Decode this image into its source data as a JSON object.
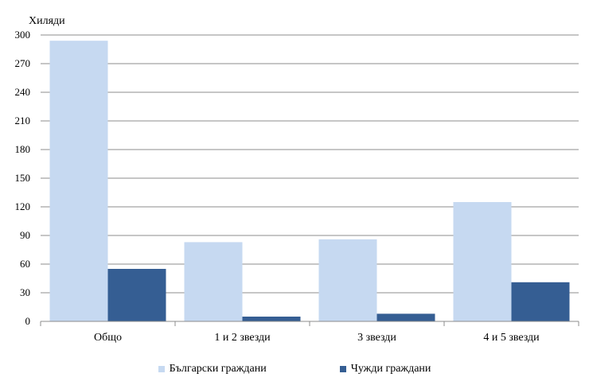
{
  "chart_data": {
    "type": "bar",
    "unit_label": "Хиляди",
    "categories": [
      "Общо",
      "1 и 2 звезди",
      "3 звезди",
      "4 и 5 звезди"
    ],
    "series": [
      {
        "name": "Български граждани",
        "color": "#c6d9f1",
        "values": [
          294,
          83,
          86,
          125
        ]
      },
      {
        "name": "Чужди граждани",
        "color": "#355e93",
        "values": [
          55,
          5,
          8,
          41
        ]
      }
    ],
    "ylim": [
      0,
      300
    ],
    "yticks": [
      "0",
      "30",
      "60",
      "90",
      "120",
      "150",
      "180",
      "210",
      "240",
      "270",
      "300"
    ],
    "grid": true,
    "legend_position": "bottom"
  }
}
